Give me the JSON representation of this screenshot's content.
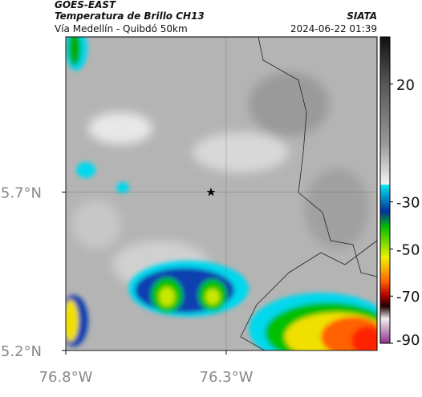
{
  "header": {
    "satellite": "GOES-EAST",
    "product": "Temperatura de Brillo CH13",
    "source": "SIATA",
    "route": "Vía Medellín - Quibdó 50km",
    "datetime": "2024-06-22 01:39"
  },
  "map": {
    "xlim": [
      -76.8,
      -75.83
    ],
    "ylim": [
      5.2,
      6.19
    ],
    "xticks": [
      {
        "value": -76.8,
        "label": "76.8°W"
      },
      {
        "value": -76.3,
        "label": "76.3°W"
      }
    ],
    "yticks": [
      {
        "value": 5.2,
        "label": "5.2°N"
      },
      {
        "value": 5.7,
        "label": "5.7°N"
      }
    ],
    "grid": true
  },
  "colorbar": {
    "lim": [
      -90,
      40
    ],
    "ticks": [
      20,
      -30,
      -50,
      -70,
      -90
    ]
  }
}
